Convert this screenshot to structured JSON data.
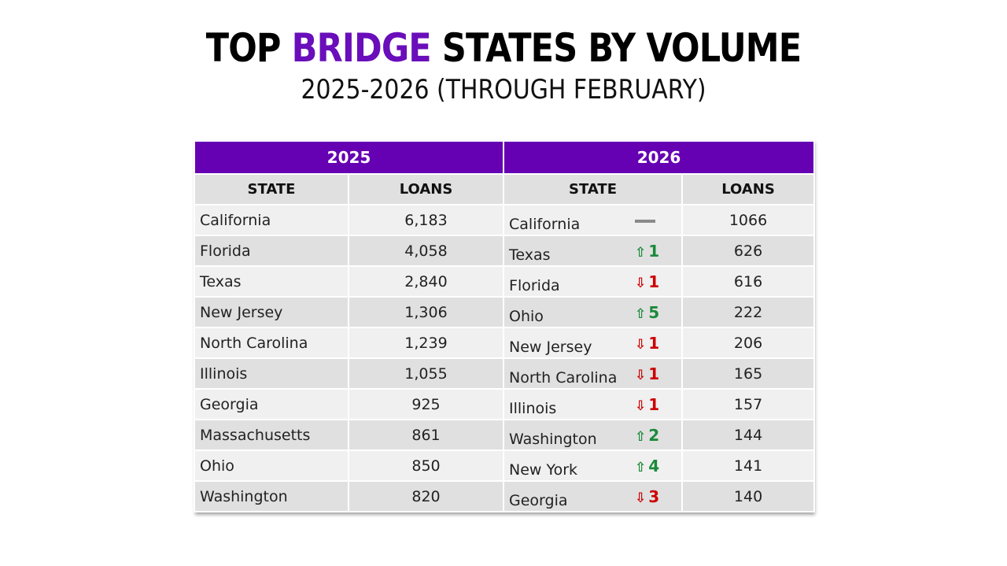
{
  "title": {
    "pre": "TOP ",
    "accent": "BRIDGE",
    "post": " STATES BY VOLUME",
    "accent_color": "#6a0dba"
  },
  "subtitle": "2025-2026 (THROUGH FEBRUARY)",
  "table": {
    "header_color": "#6600b3",
    "year_2025": "2025",
    "year_2026": "2026",
    "col_state": "STATE",
    "col_loans": "LOANS",
    "rows_2025": [
      {
        "state": "California",
        "loans": "6,183"
      },
      {
        "state": "Florida",
        "loans": "4,058"
      },
      {
        "state": "Texas",
        "loans": "2,840"
      },
      {
        "state": "New Jersey",
        "loans": "1,306"
      },
      {
        "state": "North Carolina",
        "loans": "1,239"
      },
      {
        "state": "Illinois",
        "loans": "1,055"
      },
      {
        "state": "Georgia",
        "loans": "925"
      },
      {
        "state": "Massachusetts",
        "loans": "861"
      },
      {
        "state": "Ohio",
        "loans": "850"
      },
      {
        "state": "Washington",
        "loans": "820"
      }
    ],
    "rows_2026": [
      {
        "state": "California",
        "change": "",
        "arrow": "",
        "dir": "same",
        "loans": "1066"
      },
      {
        "state": "Texas",
        "change": "1",
        "arrow": "⇧",
        "dir": "up",
        "loans": "626"
      },
      {
        "state": "Florida",
        "change": "1",
        "arrow": "⇩",
        "dir": "down",
        "loans": "616"
      },
      {
        "state": "Ohio",
        "change": "5",
        "arrow": "⇧",
        "dir": "up",
        "loans": "222"
      },
      {
        "state": "New Jersey",
        "change": "1",
        "arrow": "⇩",
        "dir": "down",
        "loans": "206"
      },
      {
        "state": "North Carolina",
        "change": "1",
        "arrow": "⇩",
        "dir": "down",
        "loans": "165"
      },
      {
        "state": "Illinois",
        "change": "1",
        "arrow": "⇩",
        "dir": "down",
        "loans": "157"
      },
      {
        "state": "Washington",
        "change": "2",
        "arrow": "⇧",
        "dir": "up",
        "loans": "144"
      },
      {
        "state": "New York",
        "change": "4",
        "arrow": "⇧",
        "dir": "up",
        "loans": "141"
      },
      {
        "state": "Georgia",
        "change": "3",
        "arrow": "⇩",
        "dir": "down",
        "loans": "140"
      }
    ]
  }
}
